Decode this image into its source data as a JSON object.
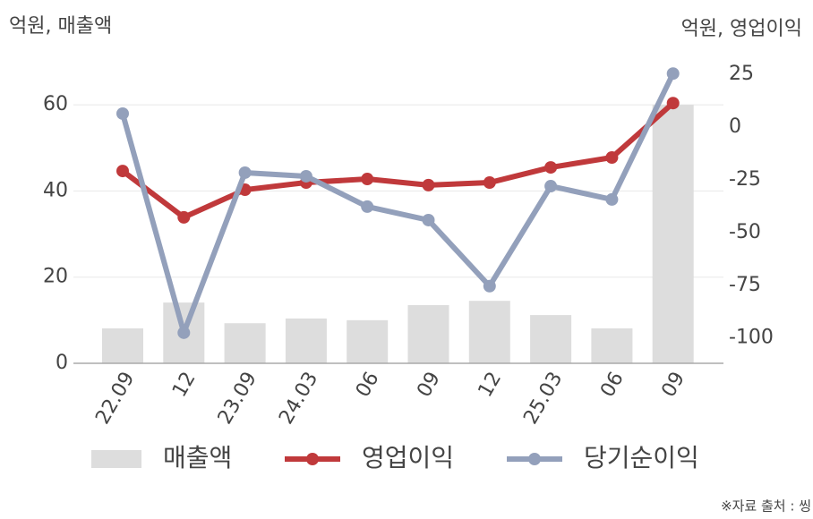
{
  "chart_data": {
    "type": "bar-line",
    "left_axis_title": "억원, 매출액",
    "right_axis_title": "억원, 영업이익",
    "source": "※자료 출처 : 씽",
    "categories": [
      "22.09",
      "12",
      "23.09",
      "24.03",
      "06",
      "09",
      "12",
      "25.03",
      "06",
      "09"
    ],
    "ylim": [
      0,
      70
    ],
    "yticks": [
      0,
      20,
      40,
      60
    ],
    "y2lim": [
      -112,
      31
    ],
    "y2ticks": [
      25,
      0,
      -25,
      -50,
      -75,
      -100
    ],
    "grid": true,
    "series": [
      {
        "name": "매출액",
        "type": "bar",
        "color": "#dddddd",
        "values": [
          8.1,
          14.1,
          9.3,
          10.4,
          10.0,
          13.5,
          14.5,
          11.2,
          8.1,
          60
        ]
      },
      {
        "name": "영업이익",
        "type": "line",
        "axis": "y2",
        "color": "#c0393b",
        "values": [
          -20.8,
          -42.8,
          -29.7,
          -26.3,
          -24.6,
          -27.5,
          -26.3,
          -19.1,
          -14.4,
          11.4
        ]
      },
      {
        "name": "당기순이익",
        "type": "line",
        "axis": "y2",
        "color": "#93a0bb",
        "values": [
          6.4,
          -97.5,
          -21.6,
          -23.3,
          -37.7,
          -44.1,
          -75.4,
          -28.0,
          -34.3,
          25.4
        ]
      }
    ]
  }
}
